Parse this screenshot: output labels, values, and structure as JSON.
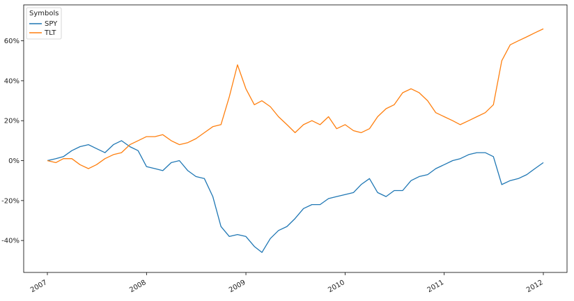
{
  "chart_data": {
    "type": "line",
    "title": "",
    "xlabel": "",
    "ylabel": "",
    "x_range": [
      "2007-01-01",
      "2012-01-01"
    ],
    "ylim": [
      -0.56,
      0.78
    ],
    "y_ticks": [
      -0.4,
      -0.2,
      0.0,
      0.2,
      0.4,
      0.6
    ],
    "y_tick_labels": [
      "-40%",
      "-20%",
      "0%",
      "20%",
      "40%",
      "60%"
    ],
    "x_ticks": [
      "2007-01-01",
      "2008-01-01",
      "2009-01-01",
      "2010-01-01",
      "2011-01-01",
      "2012-01-01"
    ],
    "x_tick_labels": [
      "2007",
      "2008",
      "2009",
      "2010",
      "2011",
      "2012"
    ],
    "grid": false,
    "legend": {
      "title": "Symbols",
      "placement": "top-left",
      "entries": [
        "SPY",
        "TLT"
      ]
    },
    "series": [
      {
        "name": "SPY",
        "color": "#1f77b4",
        "x": [
          "2007-01-01",
          "2007-02-01",
          "2007-03-01",
          "2007-04-01",
          "2007-05-01",
          "2007-06-01",
          "2007-07-01",
          "2007-08-01",
          "2007-09-01",
          "2007-10-01",
          "2007-11-01",
          "2007-12-01",
          "2008-01-01",
          "2008-02-01",
          "2008-03-01",
          "2008-04-01",
          "2008-05-01",
          "2008-06-01",
          "2008-07-01",
          "2008-08-01",
          "2008-09-01",
          "2008-10-01",
          "2008-11-01",
          "2008-12-01",
          "2009-01-01",
          "2009-02-01",
          "2009-03-01",
          "2009-04-01",
          "2009-05-01",
          "2009-06-01",
          "2009-07-01",
          "2009-08-01",
          "2009-09-01",
          "2009-10-01",
          "2009-11-01",
          "2009-12-01",
          "2010-01-01",
          "2010-02-01",
          "2010-03-01",
          "2010-04-01",
          "2010-05-01",
          "2010-06-01",
          "2010-07-01",
          "2010-08-01",
          "2010-09-01",
          "2010-10-01",
          "2010-11-01",
          "2010-12-01",
          "2011-01-01",
          "2011-02-01",
          "2011-03-01",
          "2011-04-01",
          "2011-05-01",
          "2011-06-01",
          "2011-07-01",
          "2011-08-01",
          "2011-09-01",
          "2011-10-01",
          "2011-11-01",
          "2011-12-01",
          "2012-01-01"
        ],
        "values": [
          0.0,
          0.01,
          0.02,
          0.05,
          0.07,
          0.08,
          0.06,
          0.04,
          0.08,
          0.1,
          0.07,
          0.05,
          -0.03,
          -0.04,
          -0.05,
          -0.01,
          0.0,
          -0.05,
          -0.08,
          -0.09,
          -0.18,
          -0.33,
          -0.38,
          -0.37,
          -0.38,
          -0.43,
          -0.46,
          -0.39,
          -0.35,
          -0.33,
          -0.29,
          -0.24,
          -0.22,
          -0.22,
          -0.19,
          -0.18,
          -0.17,
          -0.16,
          -0.12,
          -0.09,
          -0.16,
          -0.18,
          -0.15,
          -0.15,
          -0.1,
          -0.08,
          -0.07,
          -0.04,
          -0.02,
          0.0,
          0.01,
          0.03,
          0.04,
          0.04,
          0.02,
          -0.12,
          -0.1,
          -0.09,
          -0.07,
          -0.04,
          -0.01
        ]
      },
      {
        "name": "TLT",
        "color": "#ff7f0e",
        "x": [
          "2007-01-01",
          "2007-02-01",
          "2007-03-01",
          "2007-04-01",
          "2007-05-01",
          "2007-06-01",
          "2007-07-01",
          "2007-08-01",
          "2007-09-01",
          "2007-10-01",
          "2007-11-01",
          "2007-12-01",
          "2008-01-01",
          "2008-02-01",
          "2008-03-01",
          "2008-04-01",
          "2008-05-01",
          "2008-06-01",
          "2008-07-01",
          "2008-08-01",
          "2008-09-01",
          "2008-10-01",
          "2008-11-01",
          "2008-12-01",
          "2009-01-01",
          "2009-02-01",
          "2009-03-01",
          "2009-04-01",
          "2009-05-01",
          "2009-06-01",
          "2009-07-01",
          "2009-08-01",
          "2009-09-01",
          "2009-10-01",
          "2009-11-01",
          "2009-12-01",
          "2010-01-01",
          "2010-02-01",
          "2010-03-01",
          "2010-04-01",
          "2010-05-01",
          "2010-06-01",
          "2010-07-01",
          "2010-08-01",
          "2010-09-01",
          "2010-10-01",
          "2010-11-01",
          "2010-12-01",
          "2011-01-01",
          "2011-02-01",
          "2011-03-01",
          "2011-04-01",
          "2011-05-01",
          "2011-06-01",
          "2011-07-01",
          "2011-08-01",
          "2011-09-01",
          "2011-10-01",
          "2011-11-01",
          "2011-12-01",
          "2012-01-01"
        ],
        "values": [
          0.0,
          -0.01,
          0.01,
          0.01,
          -0.02,
          -0.04,
          -0.02,
          0.01,
          0.03,
          0.04,
          0.08,
          0.1,
          0.12,
          0.12,
          0.13,
          0.1,
          0.08,
          0.09,
          0.11,
          0.14,
          0.17,
          0.18,
          0.32,
          0.48,
          0.36,
          0.28,
          0.3,
          0.27,
          0.22,
          0.18,
          0.14,
          0.18,
          0.2,
          0.18,
          0.22,
          0.16,
          0.18,
          0.15,
          0.14,
          0.16,
          0.22,
          0.26,
          0.28,
          0.34,
          0.36,
          0.34,
          0.3,
          0.24,
          0.22,
          0.2,
          0.18,
          0.2,
          0.22,
          0.24,
          0.28,
          0.5,
          0.58,
          0.6,
          0.62,
          0.64,
          0.66
        ]
      }
    ]
  }
}
